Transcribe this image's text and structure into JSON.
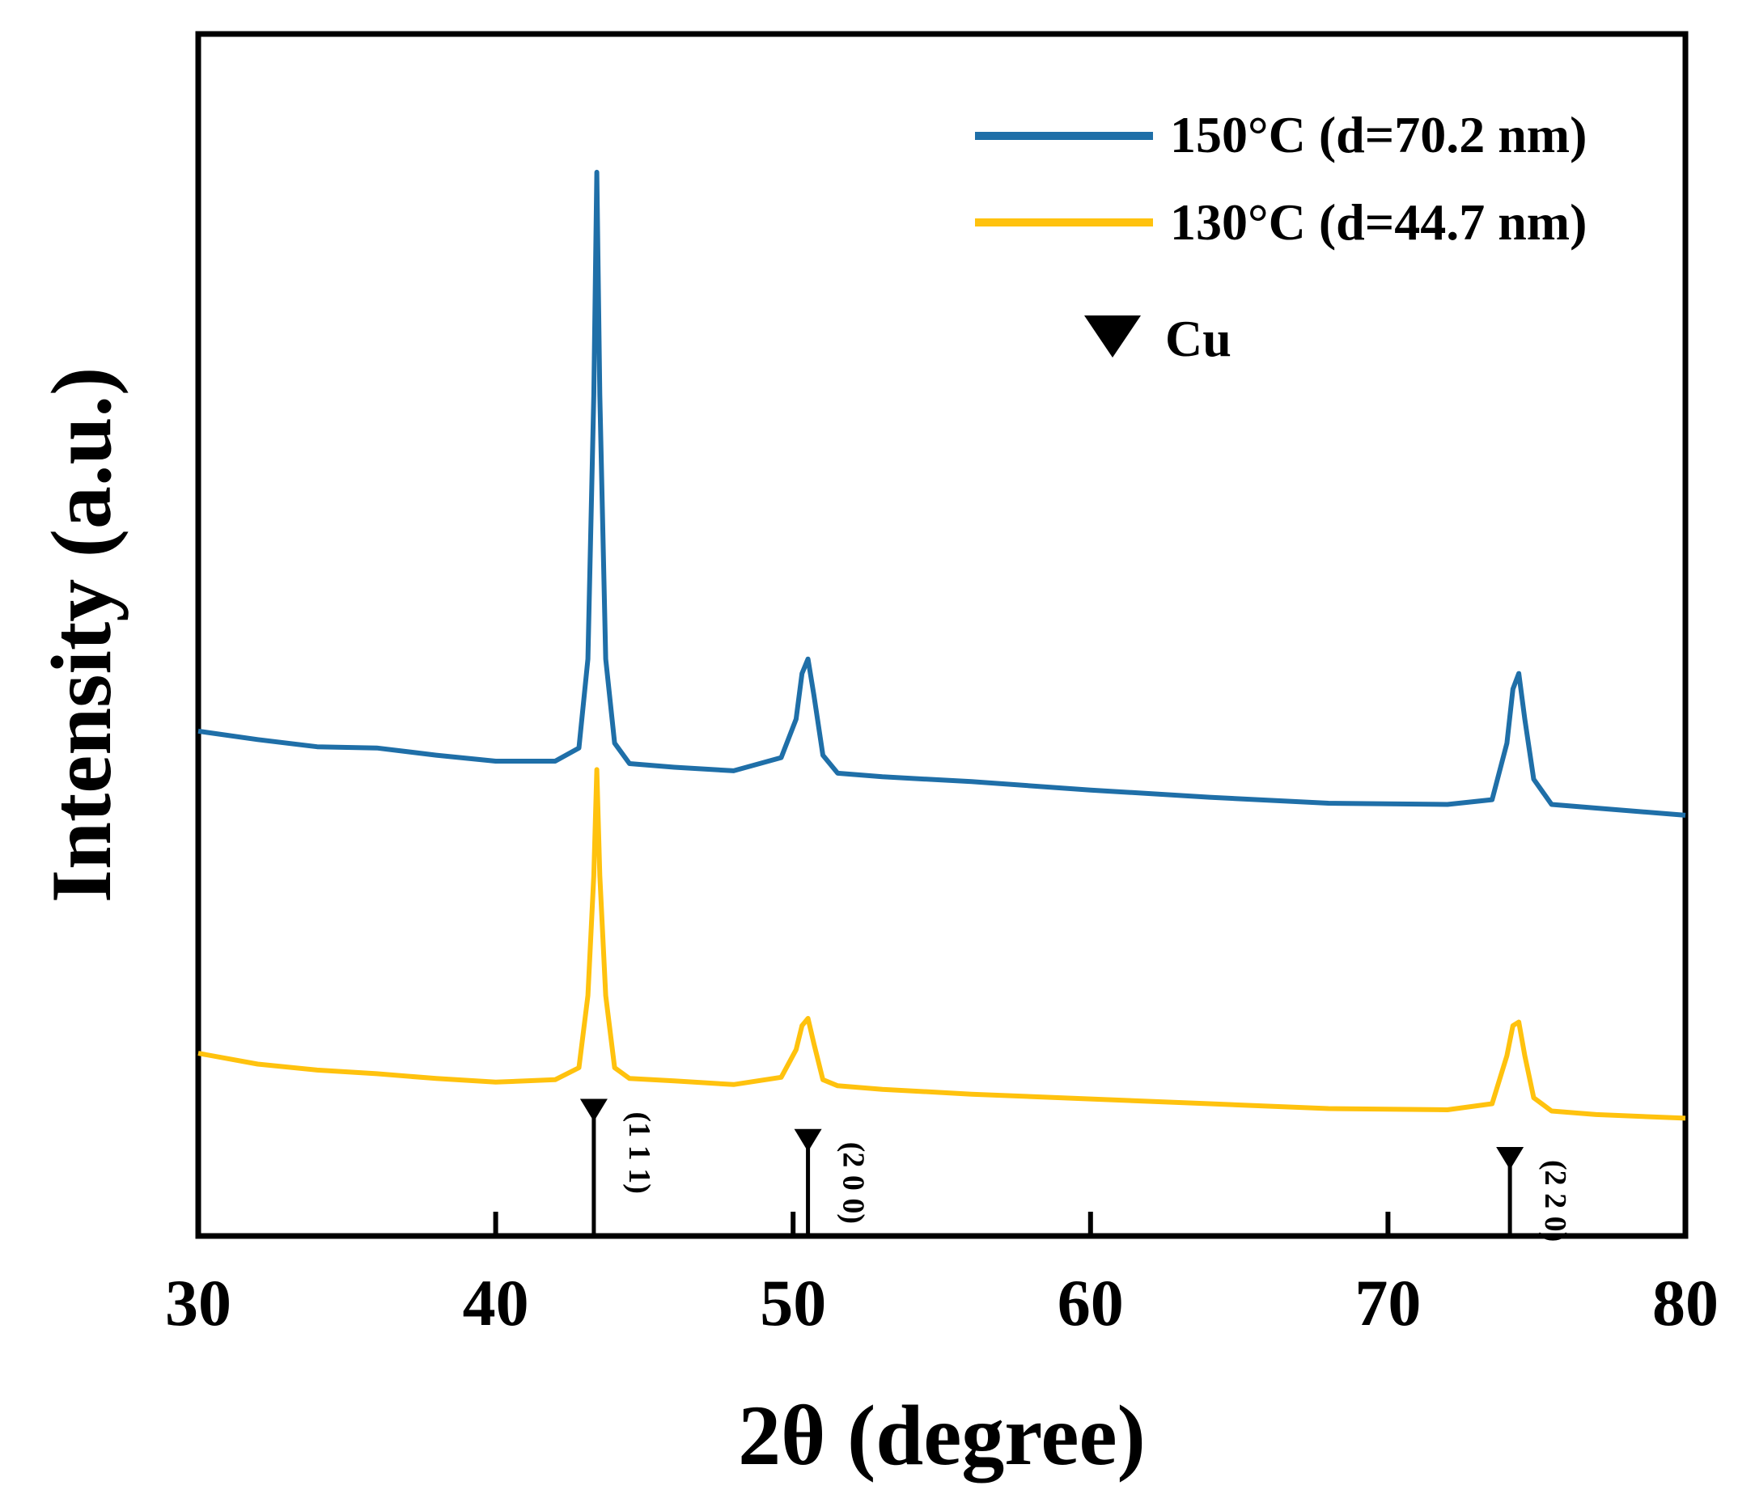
{
  "chart_data": {
    "type": "line",
    "title": "",
    "xlabel": "2θ (degree)",
    "ylabel": "Intensity (a.u.)",
    "xlim": [
      30,
      80
    ],
    "ylim": [
      0,
      100
    ],
    "xticks": [
      30,
      40,
      50,
      60,
      70,
      80
    ],
    "xtick_labels": [
      "30",
      "40",
      "50",
      "60",
      "70",
      "80"
    ],
    "yticks_shown": false,
    "grid": false,
    "legend_position": "top-right",
    "series": [
      {
        "name": "150°C (d=70.2 nm)",
        "color": "#1F6FA8",
        "x": [
          30,
          32,
          34,
          36,
          38,
          40,
          42,
          42.8,
          43.1,
          43.3,
          43.4,
          43.5,
          43.7,
          44.0,
          44.5,
          46,
          48,
          49.6,
          50.1,
          50.3,
          50.5,
          50.7,
          51.0,
          51.5,
          53,
          56,
          60,
          64,
          68,
          72,
          73.5,
          74.0,
          74.2,
          74.4,
          74.6,
          74.9,
          75.5,
          77,
          80
        ],
        "y": [
          42.0,
          41.3,
          40.7,
          40.6,
          40.0,
          39.5,
          39.5,
          40.6,
          48.0,
          70.0,
          88.5,
          70.0,
          48.0,
          41.0,
          39.3,
          39.0,
          38.7,
          39.8,
          43.0,
          46.8,
          48.0,
          45.0,
          40.0,
          38.5,
          38.2,
          37.8,
          37.1,
          36.5,
          36.0,
          35.9,
          36.3,
          41.0,
          45.5,
          46.8,
          43.0,
          38.0,
          35.9,
          35.6,
          35.0
        ]
      },
      {
        "name": "130°C (d=44.7 nm)",
        "color": "#FFC20E",
        "x": [
          30,
          32,
          34,
          36,
          38,
          40,
          42,
          42.8,
          43.1,
          43.3,
          43.4,
          43.5,
          43.7,
          44.0,
          44.5,
          46,
          48,
          49.6,
          50.1,
          50.3,
          50.5,
          50.7,
          51.0,
          51.5,
          53,
          56,
          60,
          64,
          68,
          72,
          73.5,
          74.0,
          74.2,
          74.4,
          74.6,
          74.9,
          75.5,
          77,
          80
        ],
        "y": [
          15.2,
          14.3,
          13.8,
          13.5,
          13.1,
          12.8,
          13.0,
          14.0,
          20.0,
          30.0,
          38.8,
          30.0,
          20.0,
          14.0,
          13.1,
          12.9,
          12.6,
          13.2,
          15.5,
          17.5,
          18.1,
          16.0,
          13.0,
          12.5,
          12.2,
          11.8,
          11.4,
          11.0,
          10.6,
          10.5,
          11.0,
          15.0,
          17.5,
          17.8,
          15.0,
          11.5,
          10.4,
          10.1,
          9.8
        ]
      }
    ],
    "reference": {
      "name": "Cu",
      "marker": "triangle-down",
      "color": "#000000",
      "peaks": [
        {
          "x": 43.3,
          "height": 11.0,
          "label": "(1 1 1)"
        },
        {
          "x": 50.5,
          "height": 8.5,
          "label": "(2 0 0)"
        },
        {
          "x": 74.1,
          "height": 7.0,
          "label": "(2 2 0)"
        }
      ]
    }
  }
}
